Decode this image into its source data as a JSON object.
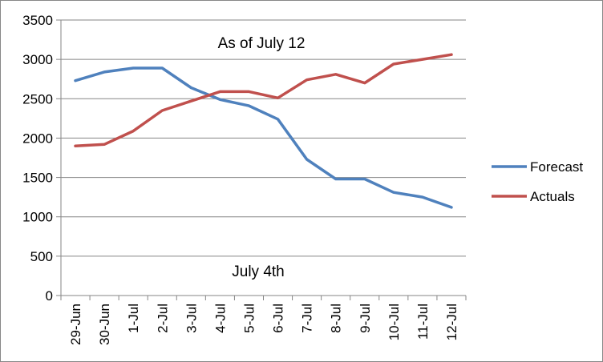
{
  "chart_data": {
    "type": "line",
    "title": "",
    "xlabel": "",
    "ylabel": "",
    "categories": [
      "29-Jun",
      "30-Jun",
      "1-Jul",
      "2-Jul",
      "3-Jul",
      "4-Jul",
      "5-Jul",
      "6-Jul",
      "7-Jul",
      "8-Jul",
      "9-Jul",
      "10-Jul",
      "11-Jul",
      "12-Jul"
    ],
    "series": [
      {
        "name": "Forecast",
        "color": "#4f81bd",
        "values": [
          2730,
          2840,
          2890,
          2890,
          2640,
          2490,
          2410,
          2240,
          1730,
          1480,
          1480,
          1310,
          1250,
          1120
        ]
      },
      {
        "name": "Actuals",
        "color": "#c0504d",
        "values": [
          1900,
          1920,
          2090,
          2350,
          2470,
          2590,
          2590,
          2510,
          2740,
          2810,
          2700,
          2940,
          3000,
          3060
        ]
      }
    ],
    "ylim": [
      0,
      3500
    ],
    "yticks": [
      0,
      500,
      1000,
      1500,
      2000,
      2500,
      3000,
      3500
    ],
    "grid": true,
    "legend_position": "right",
    "annotations": [
      {
        "id": "top",
        "text": "As of July 12"
      },
      {
        "id": "bottom",
        "text": "July 4th"
      }
    ]
  }
}
